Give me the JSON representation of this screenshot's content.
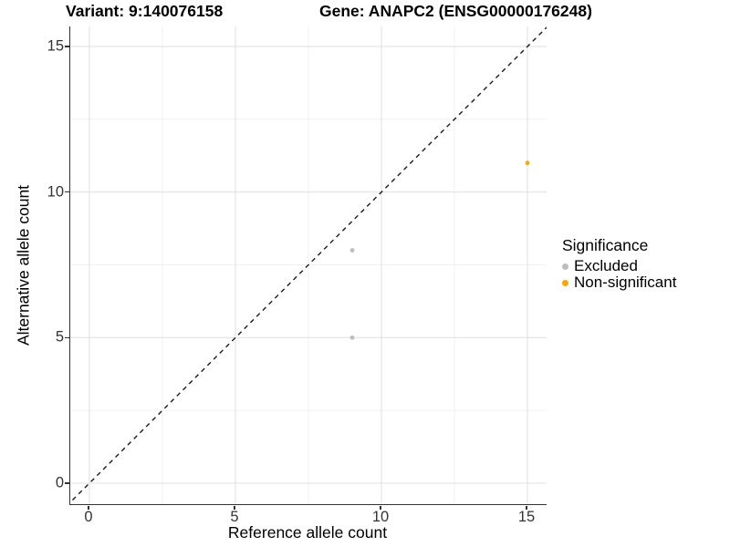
{
  "chart_data": {
    "type": "scatter",
    "title_left": "Variant: 9:140076158",
    "title_right": "Gene: ANAPC2 (ENSG00000176248)",
    "xlabel": "Reference allele count",
    "ylabel": "Alternative allele count",
    "xlim": [
      -0.75,
      15.75
    ],
    "ylim": [
      -0.75,
      15.75
    ],
    "x_ticks": [
      0,
      5,
      10,
      15
    ],
    "y_ticks": [
      0,
      5,
      10,
      15
    ],
    "x_minor_ticks": [
      2.5,
      7.5,
      12.5
    ],
    "y_minor_ticks": [
      2.5,
      7.5,
      12.5
    ],
    "grid": "on",
    "identity_line": {
      "style": "dashed",
      "slope": 1,
      "intercept": 0,
      "color": "#1a1a1a"
    },
    "series": [
      {
        "name": "Excluded",
        "color": "#BDBDBD",
        "points": [
          [
            9,
            8
          ],
          [
            9,
            5
          ]
        ]
      },
      {
        "name": "Non-significant",
        "color": "#FFA500",
        "points": [
          [
            15,
            11
          ]
        ]
      }
    ],
    "legend": {
      "title": "Significance",
      "position": "right"
    },
    "colors": {
      "grid_major": "#E2E2E2",
      "grid_minor": "#F0F0F0",
      "axis_line": "#333333",
      "tick_label": "#333333",
      "title_text": "#000000"
    }
  }
}
